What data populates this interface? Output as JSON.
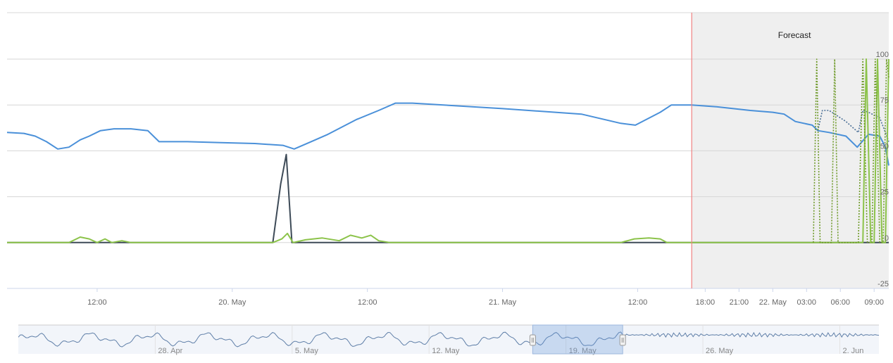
{
  "chart_data": {
    "type": "line",
    "forecast_label": "Forecast",
    "y_axis": {
      "ylim": [
        -25,
        100
      ],
      "ticks": [
        "100",
        "75",
        "50",
        "25",
        "0",
        "-25"
      ],
      "tick_values": [
        100,
        75,
        50,
        25,
        0,
        -25
      ]
    },
    "x_axis": {
      "tick_labels": [
        "12:00",
        "20. May",
        "12:00",
        "21. May",
        "12:00",
        "18:00",
        "21:00",
        "22. May",
        "03:00",
        "06:00",
        "09:00"
      ],
      "tick_hours": [
        12,
        24,
        36,
        48,
        60,
        66,
        69,
        72,
        75,
        78,
        81
      ],
      "xlim_hours": [
        4,
        82.3
      ],
      "forecast_start_hours": 64.8,
      "hour_zero": "19. May 00:00"
    },
    "series": [
      {
        "color": "#4a90d9",
        "dash": "solid",
        "points": [
          [
            4,
            60
          ],
          [
            5.5,
            59.5
          ],
          [
            6.5,
            58
          ],
          [
            7.5,
            55
          ],
          [
            8.5,
            51
          ],
          [
            9.5,
            52
          ],
          [
            10.5,
            56
          ],
          [
            11.3,
            58
          ],
          [
            12.3,
            61
          ],
          [
            13.5,
            62
          ],
          [
            15,
            62
          ],
          [
            16.5,
            61
          ],
          [
            17.5,
            55
          ],
          [
            20,
            55
          ],
          [
            23,
            54.5
          ],
          [
            26,
            54
          ],
          [
            28.5,
            53
          ],
          [
            29.5,
            51
          ],
          [
            31,
            55
          ],
          [
            32.5,
            59
          ],
          [
            35,
            67
          ],
          [
            37,
            72
          ],
          [
            38.5,
            76
          ],
          [
            40,
            76
          ],
          [
            48,
            73
          ],
          [
            55,
            70
          ],
          [
            58.5,
            65
          ],
          [
            59.8,
            64
          ],
          [
            62,
            71
          ],
          [
            63,
            75
          ],
          [
            64.8,
            75
          ],
          [
            67,
            74
          ],
          [
            70,
            72
          ],
          [
            72,
            71
          ],
          [
            73,
            70
          ],
          [
            74,
            66
          ],
          [
            75.5,
            64
          ],
          [
            76,
            61
          ],
          [
            77,
            60
          ],
          [
            78.5,
            58
          ],
          [
            79.5,
            52
          ],
          [
            80.5,
            59
          ],
          [
            81.5,
            58
          ],
          [
            82,
            52
          ],
          [
            82.3,
            42
          ]
        ]
      },
      {
        "color": "#4a6f96",
        "dash": "dotted",
        "points": [
          [
            76,
            61
          ],
          [
            76.4,
            72
          ],
          [
            77,
            72
          ],
          [
            78.5,
            66
          ],
          [
            79.6,
            60
          ],
          [
            80,
            72
          ],
          [
            80.5,
            71
          ],
          [
            81.5,
            68
          ],
          [
            82,
            60
          ],
          [
            82.3,
            55
          ]
        ]
      },
      {
        "color": "#3d4a57",
        "dash": "solid",
        "points": [
          [
            4,
            0
          ],
          [
            27.6,
            0
          ],
          [
            28.3,
            32
          ],
          [
            28.8,
            48
          ],
          [
            29.3,
            0
          ],
          [
            64.8,
            0
          ],
          [
            82.3,
            0
          ]
        ]
      },
      {
        "color": "#8cc34a",
        "dash": "solid",
        "points": [
          [
            4,
            0
          ],
          [
            9.5,
            0
          ],
          [
            10.5,
            3
          ],
          [
            11.3,
            2
          ],
          [
            12,
            0
          ],
          [
            12.7,
            2
          ],
          [
            13.3,
            0
          ],
          [
            14.2,
            1
          ],
          [
            15,
            0
          ],
          [
            27.6,
            0
          ],
          [
            28.4,
            2
          ],
          [
            28.9,
            5
          ],
          [
            29.4,
            0
          ],
          [
            30.5,
            1.5
          ],
          [
            32,
            2.5
          ],
          [
            33.5,
            1
          ],
          [
            34.5,
            4
          ],
          [
            35.5,
            2.5
          ],
          [
            36.3,
            4
          ],
          [
            37,
            1
          ],
          [
            38,
            0
          ],
          [
            58.5,
            0
          ],
          [
            59.7,
            2
          ],
          [
            61,
            2.5
          ],
          [
            62,
            2
          ],
          [
            62.6,
            0
          ],
          [
            80,
            0
          ],
          [
            80.3,
            100
          ],
          [
            80.7,
            0
          ],
          [
            81,
            0
          ],
          [
            81.3,
            100
          ],
          [
            81.7,
            0
          ],
          [
            82,
            0
          ],
          [
            82.3,
            100
          ]
        ]
      },
      {
        "color": "#6f9a2a",
        "dash": "dotted",
        "points": [
          [
            75.6,
            0
          ],
          [
            75.9,
            100
          ],
          [
            76.2,
            0
          ],
          [
            77.2,
            0
          ],
          [
            77.5,
            100
          ],
          [
            77.8,
            0
          ],
          [
            79.6,
            0
          ],
          [
            80,
            100
          ],
          [
            80.4,
            0
          ],
          [
            80.8,
            0
          ],
          [
            81.1,
            100
          ],
          [
            81.5,
            0
          ],
          [
            81.8,
            0
          ],
          [
            82.1,
            100
          ],
          [
            82.3,
            90
          ]
        ]
      }
    ],
    "navigator": {
      "labels": [
        "28. Apr",
        "5. May",
        "12. May",
        "19. May",
        "26. May",
        "2. Jun"
      ],
      "label_days": [
        7,
        14,
        21,
        28,
        35,
        42
      ],
      "xlim_days": [
        0,
        44
      ],
      "selection_days": [
        26.3,
        30.9
      ]
    }
  }
}
